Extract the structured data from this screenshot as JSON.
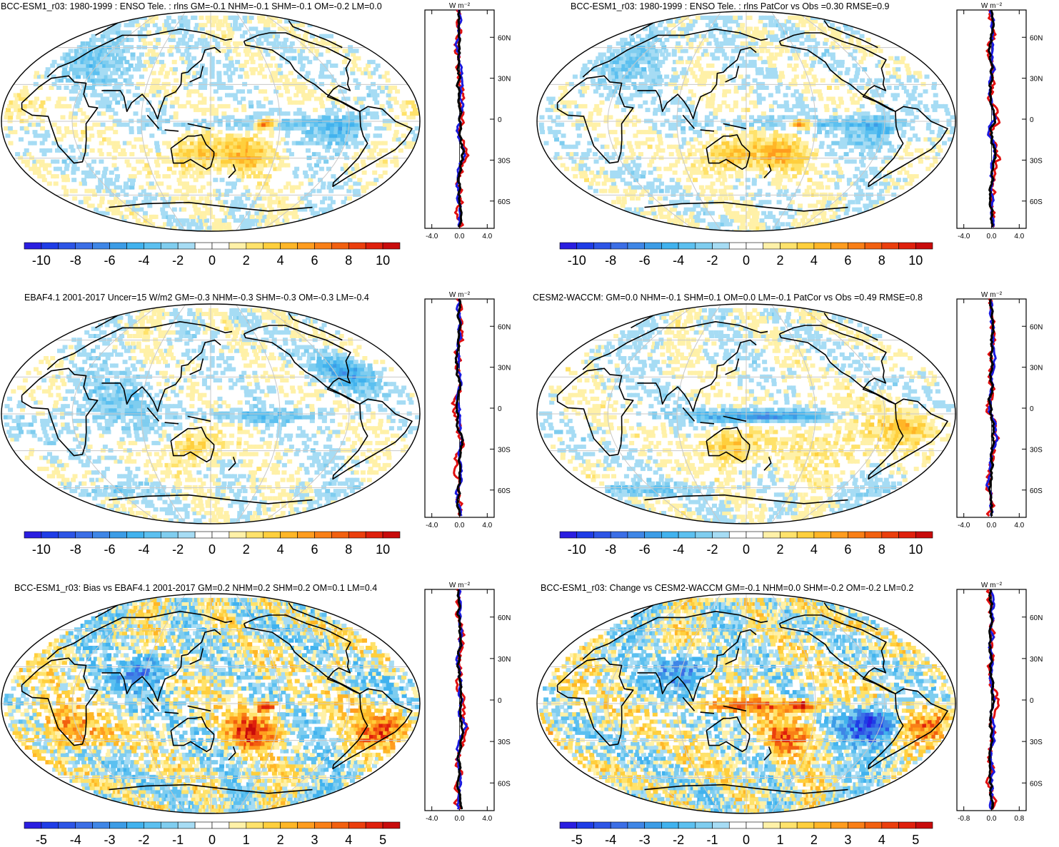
{
  "chart_data": [
    {
      "type": "heatmap",
      "title": "BCC-ESM1_r03: 1980-1999 : ENSO Tele. : rlns GM=-0.1 NHM=-0.1 SHM=-0.1 OM=-0.2 LM=0.0",
      "colorbar": {
        "min": -11,
        "max": 11,
        "ticks": [
          "-10",
          "-8",
          "-6",
          "-4",
          "-2",
          "0",
          "2",
          "4",
          "6",
          "8",
          "10"
        ]
      },
      "zonal": {
        "unit": "W m⁻²",
        "xlim": [
          -5,
          5
        ],
        "xticks": [
          "-4.0",
          "0.0",
          "4.0"
        ],
        "yticks": [
          "60N",
          "30N",
          "0",
          "30S",
          "60S"
        ]
      },
      "features": [
        {
          "lon": -165,
          "lat": 0,
          "value": 10,
          "size": "small"
        },
        {
          "lon": -170,
          "lat": 0,
          "value": -3,
          "size": "band"
        },
        {
          "lon": 135,
          "lat": -25,
          "value": 4,
          "size": "medium"
        },
        {
          "lon": -180,
          "lat": -25,
          "value": 4,
          "size": "medium"
        },
        {
          "lon": -100,
          "lat": -5,
          "value": -4,
          "size": "medium"
        },
        {
          "lon": 20,
          "lat": 50,
          "value": -2,
          "size": "large"
        },
        {
          "lon": -30,
          "lat": 10,
          "value": 2,
          "size": "medium"
        }
      ]
    },
    {
      "type": "heatmap",
      "title": "BCC-ESM1_r03: 1980-1999 : ENSO Tele. : rlns PatCor vs Obs =0.30 RMSE=0.9",
      "colorbar": {
        "min": -11,
        "max": 11,
        "ticks": [
          "-10",
          "-8",
          "-6",
          "-4",
          "-2",
          "0",
          "2",
          "4",
          "6",
          "8",
          "10"
        ]
      },
      "zonal": {
        "unit": "W m⁻²",
        "xlim": [
          -5,
          5
        ],
        "xticks": [
          "-4.0",
          "0.0",
          "4.0"
        ],
        "yticks": [
          "60N",
          "30N",
          "0",
          "30S",
          "60S"
        ]
      },
      "features": [
        {
          "lon": -165,
          "lat": 0,
          "value": 10,
          "size": "small"
        },
        {
          "lon": -170,
          "lat": 0,
          "value": -3,
          "size": "band"
        },
        {
          "lon": 135,
          "lat": -25,
          "value": 4,
          "size": "medium"
        },
        {
          "lon": -180,
          "lat": -25,
          "value": 4,
          "size": "medium"
        },
        {
          "lon": -100,
          "lat": -5,
          "value": -4,
          "size": "medium"
        },
        {
          "lon": 20,
          "lat": 50,
          "value": -2,
          "size": "large"
        }
      ]
    },
    {
      "type": "heatmap",
      "title": "EBAF4.1 2001-2017 Uncer=15 W/m2 GM=-0.3 NHM=-0.3 SHM=-0.3 OM=-0.3 LM=-0.4",
      "colorbar": {
        "min": -11,
        "max": 11,
        "ticks": [
          "-10",
          "-8",
          "-6",
          "-4",
          "-2",
          "0",
          "2",
          "4",
          "6",
          "8",
          "10"
        ]
      },
      "zonal": {
        "unit": "W m⁻²",
        "xlim": [
          -5,
          5
        ],
        "xticks": [
          "-4.0",
          "0.0",
          "4.0"
        ],
        "yticks": [
          "60N",
          "30N",
          "0",
          "30S",
          "60S"
        ]
      },
      "features": [
        {
          "lon": -80,
          "lat": 35,
          "value": -5,
          "size": "medium"
        },
        {
          "lon": 135,
          "lat": -25,
          "value": 3,
          "size": "medium"
        },
        {
          "lon": -170,
          "lat": 0,
          "value": -3,
          "size": "band"
        },
        {
          "lon": 60,
          "lat": 10,
          "value": -2,
          "size": "large"
        },
        {
          "lon": 10,
          "lat": -60,
          "value": -2,
          "size": "band"
        }
      ]
    },
    {
      "type": "heatmap",
      "title": "CESM2-WACCM: GM=0.0 NHM=-0.1 SHM=0.1 OM=0.0 LM=-0.1 PatCor vs Obs =0.49 RMSE=0.8",
      "colorbar": {
        "min": -11,
        "max": 11,
        "ticks": [
          "-10",
          "-8",
          "-6",
          "-4",
          "-2",
          "0",
          "2",
          "4",
          "6",
          "8",
          "10"
        ]
      },
      "zonal": {
        "unit": "W m⁻²",
        "xlim": [
          -5,
          5
        ],
        "xticks": [
          "-4.0",
          "0.0",
          "4.0"
        ],
        "yticks": [
          "60N",
          "30N",
          "0",
          "30S",
          "60S"
        ]
      },
      "features": [
        {
          "lon": 160,
          "lat": 0,
          "value": -7,
          "size": "band"
        },
        {
          "lon": 135,
          "lat": -25,
          "value": 4,
          "size": "medium"
        },
        {
          "lon": -130,
          "lat": -20,
          "value": 2,
          "size": "large"
        },
        {
          "lon": -70,
          "lat": -10,
          "value": 3,
          "size": "medium"
        },
        {
          "lon": 10,
          "lat": -60,
          "value": -3,
          "size": "band"
        }
      ]
    },
    {
      "type": "heatmap",
      "title": "BCC-ESM1_r03: Bias vs EBAF4.1 2001-2017 GM=0.2 NHM=0.2 SHM=0.2 OM=0.1 LM=0.4",
      "colorbar": {
        "min": -5.5,
        "max": 5.5,
        "ticks": [
          "-5",
          "-4",
          "-3",
          "-2",
          "-1",
          "0",
          "1",
          "2",
          "3",
          "4",
          "5"
        ]
      },
      "zonal": {
        "unit": "W m⁻²",
        "xlim": [
          -5,
          5
        ],
        "xticks": [
          "-4.0",
          "0.0",
          "4.0"
        ],
        "yticks": [
          "60N",
          "30N",
          "0",
          "30S",
          "60S"
        ]
      },
      "features": [
        {
          "lon": -165,
          "lat": 0,
          "value": 5,
          "size": "small"
        },
        {
          "lon": -175,
          "lat": -20,
          "value": 4,
          "size": "medium"
        },
        {
          "lon": -60,
          "lat": -20,
          "value": 3,
          "size": "medium"
        },
        {
          "lon": 20,
          "lat": -20,
          "value": 3,
          "size": "medium"
        },
        {
          "lon": 90,
          "lat": 30,
          "value": -3,
          "size": "medium"
        },
        {
          "lon": -90,
          "lat": 35,
          "value": 3,
          "size": "small"
        }
      ]
    },
    {
      "type": "heatmap",
      "title": "BCC-ESM1_r03: Change vs CESM2-WACCM GM=-0.1 NHM=0.0 SHM=-0.2 OM=-0.2 LM=0.2",
      "colorbar": {
        "min": -5.5,
        "max": 5.5,
        "ticks": [
          "-5",
          "-4",
          "-3",
          "-2",
          "-1",
          "0",
          "1",
          "2",
          "3",
          "4",
          "5"
        ]
      },
      "zonal": {
        "unit": "W m⁻²",
        "xlim": [
          -1,
          1
        ],
        "xticks": [
          "-0.8",
          "0.0",
          "0.8"
        ],
        "yticks": [
          "60N",
          "30N",
          "0",
          "30S",
          "60S"
        ]
      },
      "features": [
        {
          "lon": -100,
          "lat": -15,
          "value": -5,
          "size": "medium"
        },
        {
          "lon": -165,
          "lat": 0,
          "value": 4,
          "size": "small"
        },
        {
          "lon": -175,
          "lat": -25,
          "value": 3,
          "size": "medium"
        },
        {
          "lon": -50,
          "lat": -15,
          "value": 3,
          "size": "medium"
        },
        {
          "lon": 90,
          "lat": 30,
          "value": -3,
          "size": "medium"
        },
        {
          "lon": 160,
          "lat": 0,
          "value": 3,
          "size": "band"
        }
      ]
    }
  ]
}
